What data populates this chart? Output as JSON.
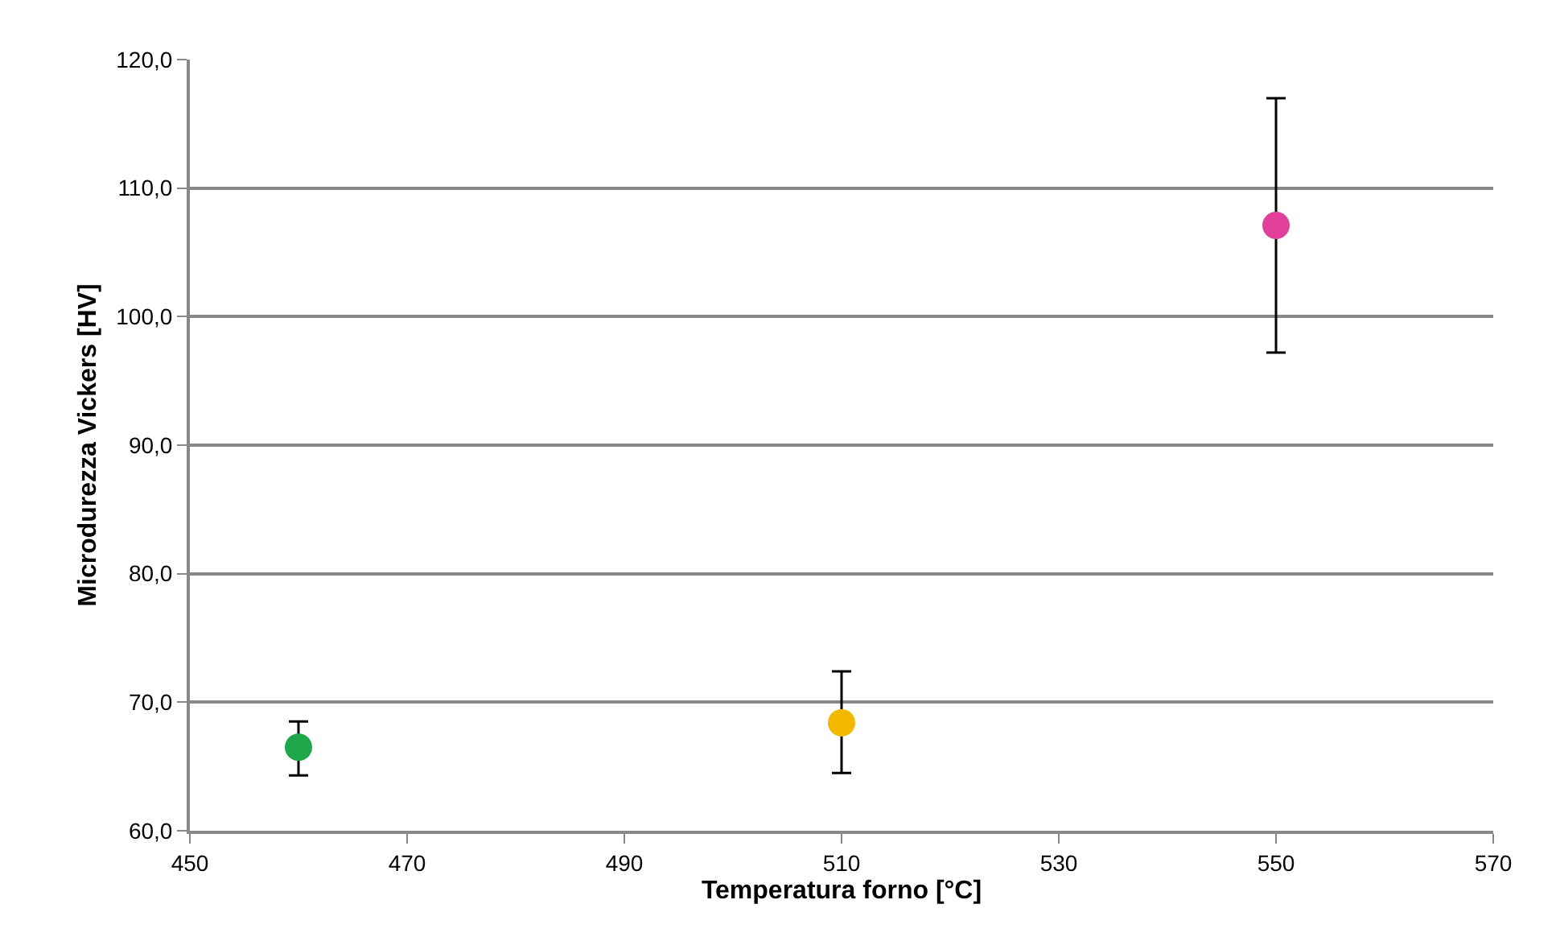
{
  "chart_data": {
    "type": "scatter",
    "xlabel": "Temperatura forno [°C]",
    "ylabel": "Microdurezza Vickers [HV]",
    "x": [
      460,
      510,
      550
    ],
    "series": [
      {
        "colors": [
          "#1fa84a",
          "#f2b800",
          "#e0409a"
        ],
        "values": [
          66.5,
          68.4,
          107.1
        ],
        "errors": [
          [
            64.3,
            68.5
          ],
          [
            64.5,
            72.4
          ],
          [
            97.2,
            117.0
          ]
        ]
      }
    ],
    "xlim": [
      450,
      570
    ],
    "xticks": [
      450,
      470,
      490,
      510,
      530,
      550,
      570
    ],
    "ylim": [
      60,
      120
    ],
    "yticks": [
      {
        "value": 60,
        "label": "60,0"
      },
      {
        "value": 70,
        "label": "70,0"
      },
      {
        "value": 80,
        "label": "80,0"
      },
      {
        "value": 90,
        "label": "90,0"
      },
      {
        "value": 100,
        "label": "100,0"
      },
      {
        "value": 110,
        "label": "110,0"
      },
      {
        "value": 120,
        "label": "120,0"
      }
    ],
    "grid": "y",
    "marker": "circle"
  }
}
